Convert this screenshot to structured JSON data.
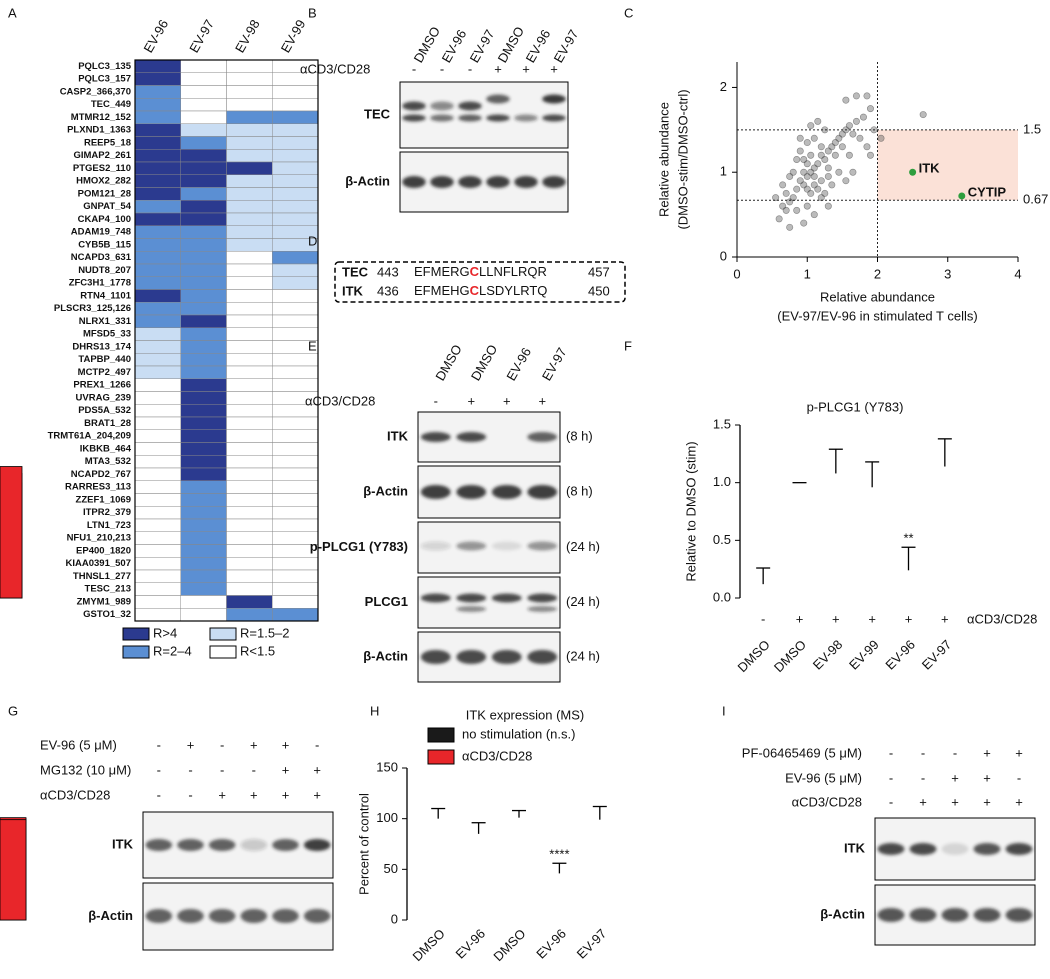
{
  "panel_a": {
    "label": "A",
    "columns": [
      "EV-96",
      "EV-97",
      "EV-98",
      "EV-99"
    ],
    "rows": [
      "PQLC3_135",
      "PQLC3_157",
      "CASP2_366,370",
      "TEC_449",
      "MTMR12_152",
      "PLXND1_1363",
      "REEP5_18",
      "GIMAP2_261",
      "PTGES2_110",
      "HMOX2_282",
      "POM121_28",
      "GNPAT_54",
      "CKAP4_100",
      "ADAM19_748",
      "CYB5B_115",
      "NCAPD3_631",
      "NUDT8_207",
      "ZFC3H1_1778",
      "RTN4_1101",
      "PLSCR3_125,126",
      "NLRX1_331",
      "MFSD5_33",
      "DHRS13_174",
      "TAPBP_440",
      "MCTP2_497",
      "PREX1_1266",
      "UVRAG_239",
      "PDS5A_532",
      "BRAT1_28",
      "TRMT61A_204,209",
      "IKBKB_464",
      "MTA3_532",
      "NCAPD2_767",
      "RARRES3_113",
      "ZZEF1_1069",
      "ITPR2_379",
      "LTN1_723",
      "NFU1_210,213",
      "EP400_1820",
      "KIAA0391_507",
      "THNSL1_277",
      "TESC_213",
      "ZMYM1_989",
      "GSTO1_32"
    ],
    "cells": [
      [
        0,
        3,
        3,
        3
      ],
      [
        0,
        3,
        3,
        3
      ],
      [
        1,
        3,
        3,
        3
      ],
      [
        1,
        3,
        3,
        3
      ],
      [
        1,
        3,
        1,
        1
      ],
      [
        0,
        2,
        2,
        2
      ],
      [
        0,
        1,
        2,
        2
      ],
      [
        0,
        0,
        2,
        2
      ],
      [
        0,
        0,
        0,
        2
      ],
      [
        0,
        0,
        2,
        2
      ],
      [
        0,
        1,
        2,
        2
      ],
      [
        1,
        0,
        2,
        2
      ],
      [
        0,
        0,
        2,
        2
      ],
      [
        1,
        1,
        2,
        2
      ],
      [
        1,
        1,
        2,
        2
      ],
      [
        1,
        1,
        3,
        1
      ],
      [
        1,
        1,
        3,
        2
      ],
      [
        1,
        1,
        3,
        2
      ],
      [
        0,
        1,
        3,
        3
      ],
      [
        1,
        1,
        3,
        3
      ],
      [
        1,
        0,
        3,
        3
      ],
      [
        2,
        1,
        3,
        3
      ],
      [
        2,
        1,
        3,
        3
      ],
      [
        2,
        1,
        3,
        3
      ],
      [
        2,
        1,
        3,
        3
      ],
      [
        3,
        0,
        3,
        3
      ],
      [
        3,
        0,
        3,
        3
      ],
      [
        3,
        0,
        3,
        3
      ],
      [
        3,
        0,
        3,
        3
      ],
      [
        3,
        0,
        3,
        3
      ],
      [
        3,
        0,
        3,
        3
      ],
      [
        3,
        0,
        3,
        3
      ],
      [
        3,
        0,
        3,
        3
      ],
      [
        3,
        1,
        3,
        3
      ],
      [
        3,
        1,
        3,
        3
      ],
      [
        3,
        1,
        3,
        3
      ],
      [
        3,
        1,
        3,
        3
      ],
      [
        3,
        1,
        3,
        3
      ],
      [
        3,
        1,
        3,
        3
      ],
      [
        3,
        1,
        3,
        3
      ],
      [
        3,
        1,
        3,
        3
      ],
      [
        3,
        1,
        3,
        3
      ],
      [
        3,
        3,
        0,
        3
      ],
      [
        3,
        3,
        1,
        1
      ]
    ],
    "legend": [
      {
        "label": "R>4",
        "color": "#2b3a8f"
      },
      {
        "label": "R=2–4",
        "color": "#5b8fd3"
      },
      {
        "label": "R=1.5–2",
        "color": "#c9ddf3"
      },
      {
        "label": "R<1.5",
        "color": "#ffffff"
      }
    ]
  },
  "panel_b": {
    "label": "B",
    "lanes": [
      "DMSO",
      "EV-96",
      "EV-97",
      "DMSO",
      "EV-96",
      "EV-97"
    ],
    "treatments": [
      {
        "name": "αCD3/CD28",
        "signs": [
          "-",
          "-",
          "-",
          "+",
          "+",
          "+"
        ]
      }
    ],
    "blots": [
      {
        "name": "TEC"
      },
      {
        "name": "β-Actin"
      }
    ]
  },
  "panel_d": {
    "label": "D",
    "rows": [
      {
        "name": "TEC",
        "start": 443,
        "before": "EFMERG",
        "residue": "C",
        "after": "LLNFLRQR",
        "end": 457
      },
      {
        "name": "ITK",
        "start": 436,
        "before": "EFMEHG",
        "residue": "C",
        "after": "LSDYLRTQ",
        "end": 450
      }
    ]
  },
  "panel_e": {
    "label": "E",
    "lanes": [
      "DMSO",
      "DMSO",
      "EV-96",
      "EV-97"
    ],
    "treatments": [
      {
        "name": "αCD3/CD28",
        "signs": [
          "-",
          "+",
          "+",
          "+"
        ]
      }
    ],
    "blots": [
      {
        "name": "ITK",
        "time": "(8 h)"
      },
      {
        "name": "β-Actin",
        "time": "(8 h)"
      },
      {
        "name": "p-PLCG1 (Y783)",
        "time": "(24 h)"
      },
      {
        "name": "PLCG1",
        "time": "(24 h)"
      },
      {
        "name": "β-Actin",
        "time": "(24 h)"
      }
    ]
  },
  "panel_g": {
    "label": "G",
    "treatments": [
      {
        "name": "EV-96 (5 μM)",
        "signs": [
          "-",
          "+",
          "-",
          "+",
          "+",
          "-"
        ]
      },
      {
        "name": "MG132 (10 μM)",
        "signs": [
          "-",
          "-",
          "-",
          "-",
          "+",
          "+"
        ]
      },
      {
        "name": "αCD3/CD28",
        "signs": [
          "-",
          "-",
          "+",
          "+",
          "+",
          "+"
        ]
      }
    ],
    "blots": [
      {
        "name": "ITK"
      },
      {
        "name": "β-Actin"
      }
    ]
  },
  "panel_i": {
    "label": "I",
    "treatments": [
      {
        "name": "PF-06465469 (5 μM)",
        "signs": [
          "-",
          "-",
          "-",
          "+",
          "+"
        ]
      },
      {
        "name": "EV-96 (5 μM)",
        "signs": [
          "-",
          "-",
          "+",
          "+",
          "-"
        ]
      },
      {
        "name": "αCD3/CD28",
        "signs": [
          "-",
          "+",
          "+",
          "+",
          "+"
        ]
      }
    ],
    "blots": [
      {
        "name": "ITK"
      },
      {
        "name": "β-Actin"
      }
    ]
  },
  "chart_data": [
    {
      "type": "scatter",
      "panel_label": "C",
      "x_label": [
        "Relative abundance",
        "(EV-97/EV-96 in stimulated T cells)"
      ],
      "y_label": [
        "Relative abundance",
        "(DMSO-stim/DMSO-ctrl)"
      ],
      "xlim": [
        0,
        4
      ],
      "xticks": [
        0,
        1,
        2,
        3,
        4
      ],
      "ylim": [
        0,
        2.3
      ],
      "yticks": [
        0,
        1,
        2
      ],
      "hlines": [
        1.5,
        0.67
      ],
      "vline": 2,
      "shade_color": "#fbe1d7",
      "color": "#555555",
      "x": [
        0.95,
        1.0,
        1.05,
        1.1,
        0.9,
        1.0,
        1.15,
        1.2,
        0.85,
        1.1,
        1.0,
        1.05,
        0.95,
        1.25,
        1.3,
        1.35,
        1.4,
        1.45,
        1.5,
        1.55,
        1.6,
        1.7,
        1.65,
        1.5,
        1.4,
        1.3,
        1.2,
        1.15,
        0.8,
        0.75,
        0.7,
        0.8,
        0.85,
        0.9,
        1.0,
        1.1,
        0.75,
        0.65,
        0.7,
        0.85,
        1.0,
        1.2,
        1.35,
        1.45,
        1.6,
        1.75,
        1.8,
        1.9,
        1.7,
        1.55,
        1.95,
        1.85,
        1.25,
        1.15,
        1.05,
        0.9,
        0.6,
        0.75,
        0.95,
        1.1,
        1.3,
        1.55,
        1.65,
        1.9,
        2.05,
        2.65,
        1.85,
        0.65,
        0.55,
        1.2,
        1.05,
        0.95,
        1.1,
        1.3,
        1.25
      ],
      "values": [
        0.85,
        0.95,
        1.0,
        1.05,
        0.9,
        1.1,
        1.1,
        1.2,
        0.8,
        0.95,
        0.8,
        0.75,
        1.0,
        1.15,
        1.25,
        1.3,
        1.35,
        1.4,
        1.45,
        1.5,
        1.55,
        1.6,
        1.45,
        1.3,
        1.2,
        1.05,
        0.9,
        0.8,
        0.7,
        0.65,
        0.75,
        1.0,
        1.15,
        1.25,
        1.35,
        1.4,
        0.95,
        0.85,
        0.55,
        0.55,
        0.6,
        0.7,
        0.85,
        1.0,
        1.2,
        1.4,
        1.65,
        1.75,
        1.9,
        1.85,
        1.5,
        1.3,
        1.5,
        1.6,
        1.55,
        1.4,
        0.45,
        0.35,
        0.4,
        0.5,
        0.6,
        0.9,
        1.0,
        1.2,
        1.4,
        1.68,
        1.9,
        0.6,
        0.7,
        1.3,
        1.2,
        1.15,
        0.85,
        0.95,
        0.75
      ],
      "highlight_color": "#2e9e3e",
      "highlights": [
        {
          "label": "ITK",
          "x": 2.5,
          "y": 1.0
        },
        {
          "label": "CYTIP",
          "x": 3.2,
          "y": 0.72
        }
      ]
    },
    {
      "type": "bar",
      "panel_label": "F",
      "title": "p-PLCG1 (Y783)",
      "y_label": "Relative to DMSO (stim)",
      "categories": [
        "DMSO",
        "DMSO",
        "EV-98",
        "EV-99",
        "EV-96",
        "EV-97"
      ],
      "values": [
        0.12,
        1.0,
        1.08,
        0.96,
        0.24,
        1.14
      ],
      "error": [
        0.14,
        0,
        0.21,
        0.22,
        0.2,
        0.24
      ],
      "stars": [
        null,
        null,
        null,
        null,
        "**",
        null
      ],
      "color": "#e8262a",
      "treatment": {
        "name": "αCD3/CD28",
        "signs": [
          "-",
          "+",
          "+",
          "+",
          "+",
          "+"
        ]
      },
      "ylim": [
        0,
        1.5
      ],
      "yticks": [
        {
          "value": 0,
          "label": "0.0"
        },
        0.5,
        {
          "value": 1,
          "label": "1.0"
        },
        1.5
      ]
    },
    {
      "type": "bar",
      "panel_label": "H",
      "title": "ITK expression (MS)",
      "y_label": "Percent of control",
      "categories": [
        "DMSO",
        "EV-96",
        "DMSO",
        "EV-96",
        "EV-97"
      ],
      "series": [
        {
          "name": "no stimulation (n.s.)",
          "color": "#1a1a1a",
          "values": [
            100,
            85,
            null,
            null,
            null
          ],
          "error": [
            10,
            11,
            null,
            null,
            null
          ]
        },
        {
          "name": "αCD3/CD28",
          "color": "#e8262a",
          "values": [
            null,
            null,
            101,
            46,
            99
          ],
          "error": [
            null,
            null,
            7,
            10,
            13
          ]
        }
      ],
      "stars": [
        null,
        null,
        null,
        "****",
        null
      ],
      "ylim": [
        0,
        150
      ],
      "yticks": [
        0,
        50,
        100,
        150
      ]
    }
  ]
}
